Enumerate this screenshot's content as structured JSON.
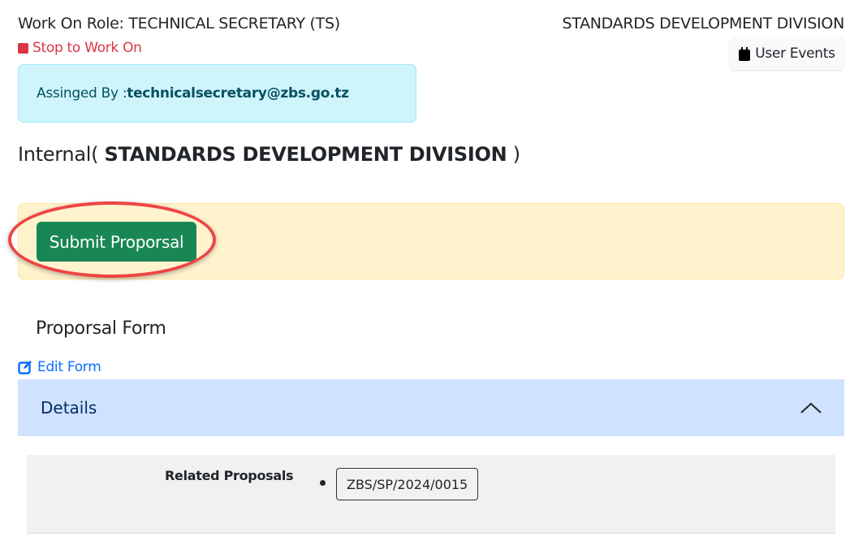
{
  "header": {
    "role_label": "Work On Role: TECHNICAL SECRETARY (TS)",
    "stop_label": "Stop to Work On",
    "division": "STANDARDS DEVELOPMENT DIVISION",
    "user_events_label": "User Events"
  },
  "assigned": {
    "label": "Assinged By : ",
    "email": "technicalsecretary@zbs.go.tz"
  },
  "internal": {
    "prefix": "Internal( ",
    "division": "STANDARDS DEVELOPMENT DIVISION",
    "suffix": " )"
  },
  "actions": {
    "submit_label": "Submit Proporsal"
  },
  "form": {
    "title": "Proporsal Form",
    "edit_label": "Edit Form",
    "details_label": "Details",
    "related_label": "Related Proposals",
    "related_items": [
      "ZBS/SP/2024/0015"
    ]
  },
  "colors": {
    "success": "#198754",
    "danger": "#dc3545",
    "info_bg": "#cff4fc",
    "warning_bg": "#fff3cd",
    "primary": "#0d6efd",
    "highlight_ring": "#ef4444"
  }
}
